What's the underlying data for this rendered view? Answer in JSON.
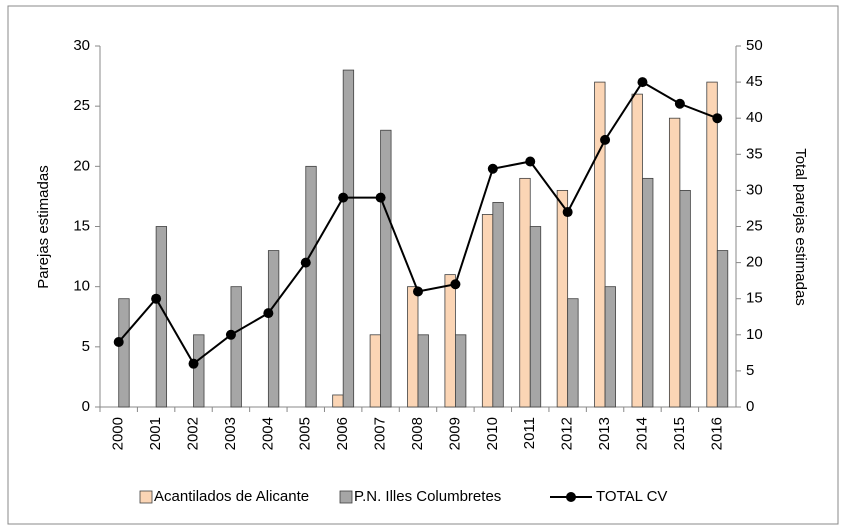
{
  "chart_data": {
    "type": "bar",
    "categories": [
      "2000",
      "2001",
      "2002",
      "2003",
      "2004",
      "2005",
      "2006",
      "2007",
      "2008",
      "2009",
      "2010",
      "2011",
      "2012",
      "2013",
      "2014",
      "2015",
      "2016"
    ],
    "series": [
      {
        "name": "Acantilados de Alicante",
        "color": "#fbd5b5",
        "values": [
          0,
          0,
          0,
          0,
          0,
          0,
          1,
          6,
          10,
          11,
          16,
          19,
          18,
          27,
          26,
          24,
          27
        ]
      },
      {
        "name": "P.N. Illes Columbretes",
        "color": "#a6a6a6",
        "values": [
          9,
          15,
          6,
          10,
          13,
          20,
          28,
          23,
          6,
          6,
          17,
          15,
          9,
          10,
          19,
          18,
          13
        ]
      },
      {
        "name": "TOTAL CV",
        "color": "#000000",
        "type": "line",
        "axis": "y2",
        "values": [
          9,
          15,
          6,
          10,
          13,
          20,
          29,
          29,
          16,
          17,
          33,
          34,
          27,
          37,
          45,
          42,
          40
        ]
      }
    ],
    "ylabel": "Parejas estimadas",
    "y2label": "Total parejas estimadas",
    "ylim": [
      0,
      30
    ],
    "yticks": [
      0,
      5,
      10,
      15,
      20,
      25,
      30
    ],
    "y2lim": [
      0,
      50
    ],
    "y2ticks": [
      0,
      5,
      10,
      15,
      20,
      25,
      30,
      35,
      40,
      45,
      50
    ],
    "legend": "bottom"
  }
}
